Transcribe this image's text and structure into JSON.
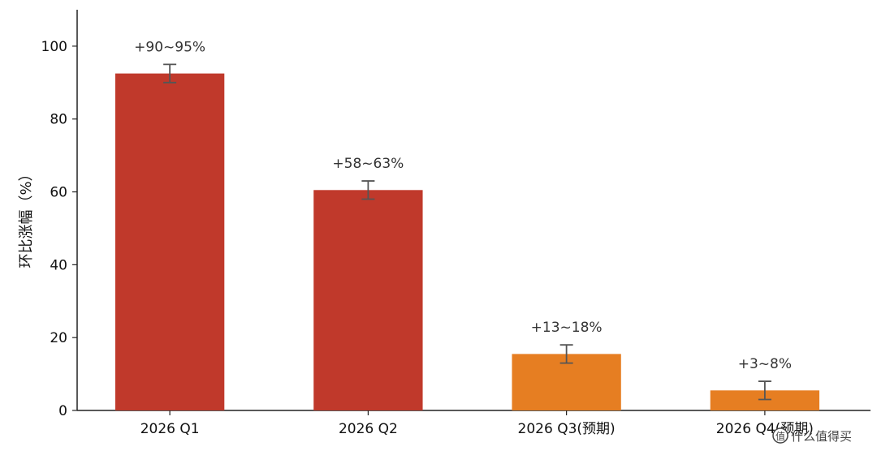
{
  "chart_data": {
    "type": "bar",
    "title": "",
    "xlabel": "",
    "ylabel": "环比涨幅（%）",
    "ylim": [
      0,
      110
    ],
    "yticks": [
      0,
      20,
      40,
      60,
      80,
      100
    ],
    "categories": [
      "2026 Q1",
      "2026 Q2",
      "2026 Q3(预期)",
      "2026 Q4(预期)"
    ],
    "values": [
      92.5,
      60.5,
      15.5,
      5.5
    ],
    "error_low": [
      90,
      58,
      13,
      3
    ],
    "error_high": [
      95,
      63,
      18,
      8
    ],
    "data_labels": [
      "+90~95%",
      "+58~63%",
      "+13~18%",
      "+3~8%"
    ],
    "bar_colors": [
      "#c0392b",
      "#c0392b",
      "#e67e22",
      "#e67e22"
    ],
    "error_bar_color": "#555555",
    "grid": false,
    "legend": "none"
  },
  "watermark": {
    "text": "值 什么值得买",
    "icon": "smzdm-logo-icon"
  }
}
